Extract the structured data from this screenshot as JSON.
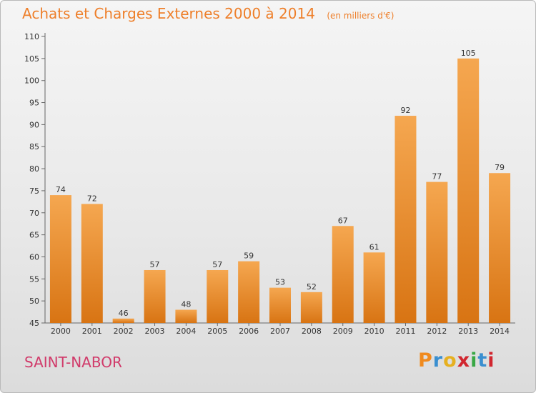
{
  "header": {
    "title": "Achats et Charges Externes 2000 à 2014",
    "subtitle": "(en milliers d'€)"
  },
  "footer": {
    "commune": "SAINT-NABOR",
    "logo_letters": [
      "P",
      "r",
      "o",
      "x",
      "i",
      "t",
      "i"
    ],
    "logo_colors": [
      "#f08a1e",
      "#3a8fd0",
      "#e6b020",
      "#d1262f",
      "#39a845",
      "#3a8fd0",
      "#d1262f"
    ]
  },
  "colors": {
    "bar_top": "#f5a750",
    "bar_bottom": "#d87413",
    "title": "#ee7f2a",
    "commune": "#d13a6a"
  },
  "chart_data": {
    "type": "bar",
    "title": "Achats et Charges Externes 2000 à 2014",
    "subtitle": "(en milliers d'€)",
    "categories": [
      "2000",
      "2001",
      "2002",
      "2003",
      "2004",
      "2005",
      "2006",
      "2007",
      "2008",
      "2009",
      "2010",
      "2011",
      "2012",
      "2013",
      "2014"
    ],
    "values": [
      74,
      72,
      46,
      57,
      48,
      57,
      59,
      53,
      52,
      67,
      61,
      92,
      77,
      105,
      79
    ],
    "ylim": [
      45,
      110
    ],
    "yticks": [
      45,
      50,
      55,
      60,
      65,
      70,
      75,
      80,
      85,
      90,
      95,
      100,
      105,
      110
    ],
    "grid": false,
    "xlabel": "",
    "ylabel": ""
  }
}
